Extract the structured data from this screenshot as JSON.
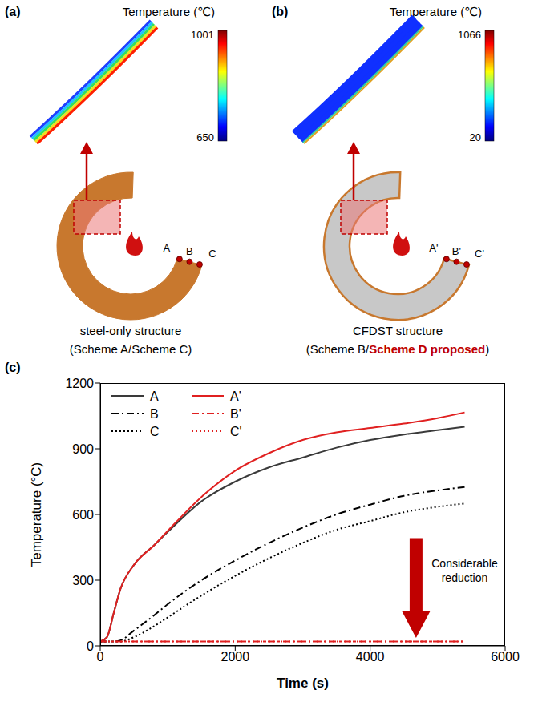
{
  "panels": [
    {
      "label": "(a)",
      "colorbar_title": "Temperature (℃)",
      "colorbar": {
        "min": 650,
        "max": 1001
      },
      "points": [
        "A",
        "B",
        "C"
      ],
      "caption": [
        [
          "steel-only structure"
        ],
        [
          "(Scheme A/Scheme C)"
        ]
      ]
    },
    {
      "label": "(b)",
      "colorbar_title": "Temperature (℃)",
      "colorbar": {
        "min": 20,
        "max": 1066
      },
      "points": [
        "A'",
        "B'",
        "C'"
      ],
      "caption": [
        [
          "CFDST structure"
        ],
        [
          "(Scheme B/",
          "Scheme D proposed",
          ")"
        ]
      ],
      "highlight": "Scheme D proposed"
    }
  ],
  "chart_data": {
    "type": "line",
    "label": "(c)",
    "x_label": "Time (s)",
    "y_label": "Temperature (°C)",
    "x": [
      0,
      100,
      200,
      300,
      500,
      800,
      1000,
      1500,
      2000,
      2500,
      3000,
      3500,
      4000,
      4500,
      5000,
      5400
    ],
    "xlim": [
      0,
      6000
    ],
    "xticks": [
      0,
      2000,
      4000,
      6000
    ],
    "ylim": [
      0,
      1200
    ],
    "yticks": [
      0,
      300,
      600,
      900,
      1200
    ],
    "legend": "upper left",
    "annotation": "Considerable reduction",
    "series": [
      {
        "name": "A",
        "color": "#3a3a3a",
        "line_style": "solid",
        "values": [
          20,
          40,
          150,
          260,
          370,
          460,
          520,
          660,
          750,
          815,
          860,
          905,
          940,
          965,
          985,
          1001
        ]
      },
      {
        "name": "B",
        "color": "#000000",
        "line_style": "dashdot",
        "values": [
          20,
          20,
          20,
          25,
          70,
          140,
          190,
          300,
          390,
          470,
          540,
          600,
          645,
          685,
          710,
          725
        ]
      },
      {
        "name": "C",
        "color": "#000000",
        "line_style": "dotted",
        "values": [
          20,
          20,
          20,
          20,
          40,
          90,
          130,
          230,
          320,
          400,
          470,
          530,
          570,
          610,
          635,
          650
        ]
      },
      {
        "name": "A'",
        "color": "#e02020",
        "line_style": "solid",
        "values": [
          20,
          40,
          150,
          260,
          370,
          460,
          525,
          680,
          800,
          880,
          940,
          975,
          995,
          1015,
          1040,
          1066
        ]
      },
      {
        "name": "B'",
        "color": "#e02020",
        "line_style": "dashdot",
        "values": [
          20,
          20,
          20,
          20,
          20,
          20,
          20,
          20,
          20,
          20,
          20,
          20,
          20,
          20,
          20,
          20
        ]
      },
      {
        "name": "C'",
        "color": "#e02020",
        "line_style": "dotted",
        "values": [
          20,
          20,
          20,
          20,
          20,
          20,
          20,
          20,
          20,
          20,
          20,
          20,
          20,
          20,
          20,
          20
        ]
      }
    ]
  }
}
